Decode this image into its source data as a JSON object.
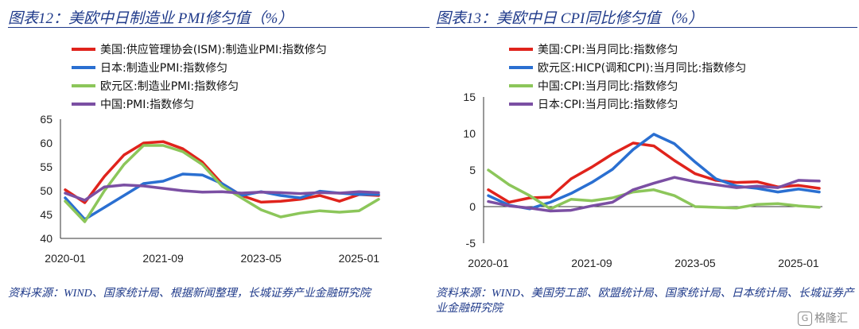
{
  "left": {
    "title": "图表12：美欧中日制造业 PMI修匀值（%）",
    "source": "资料来源：WIND、国家统计局、根据新闻整理，长城证券产业金融研究院",
    "chart_data": {
      "type": "line",
      "x": [
        "2020-01",
        "2020-05",
        "2020-09",
        "2021-01",
        "2021-05",
        "2021-09",
        "2022-01",
        "2022-05",
        "2022-09",
        "2023-01",
        "2023-05",
        "2023-09",
        "2024-01",
        "2024-05",
        "2024-09",
        "2025-01",
        "2025-05"
      ],
      "xticks": [
        "2020-01",
        "2021-09",
        "2023-05",
        "2025-01"
      ],
      "ylim": [
        40,
        65
      ],
      "yticks": [
        40,
        45,
        50,
        55,
        60,
        65
      ],
      "series": [
        {
          "name": "美国:供应管理协会(ISM):制造业PMI:指数修匀",
          "color": "#e0231c",
          "values": [
            50.2,
            47.5,
            53.0,
            57.5,
            60.0,
            60.3,
            58.8,
            56.0,
            51.5,
            49.0,
            47.6,
            47.8,
            48.2,
            49.0,
            47.8,
            49.2,
            49.0
          ]
        },
        {
          "name": "日本:制造业PMI:指数修匀",
          "color": "#2a6fd1",
          "values": [
            48.5,
            44.0,
            46.5,
            49.0,
            51.5,
            52.0,
            53.5,
            53.3,
            51.5,
            49.0,
            49.8,
            49.0,
            48.5,
            49.9,
            49.5,
            49.2,
            49.2
          ]
        },
        {
          "name": "欧元区:制造业PMI:指数修匀",
          "color": "#8cc65a",
          "values": [
            47.8,
            43.5,
            50.0,
            55.5,
            59.5,
            59.5,
            58.2,
            55.5,
            51.0,
            48.5,
            46.0,
            44.5,
            45.3,
            45.8,
            45.5,
            45.8,
            48.2
          ]
        },
        {
          "name": "中国:PMI:指数修匀",
          "color": "#7b4fa3",
          "values": [
            49.5,
            48.0,
            50.8,
            51.2,
            51.0,
            50.5,
            50.0,
            49.7,
            49.8,
            49.5,
            49.7,
            49.6,
            49.4,
            49.6,
            49.5,
            49.8,
            49.6
          ]
        }
      ]
    }
  },
  "right": {
    "title": "图表13：美欧中日 CPI同比修匀值（%）",
    "source": "资料来源：WIND、美国劳工部、欧盟统计局、国家统计局、日本统计局、长城证券产业金融研究院",
    "chart_data": {
      "type": "line",
      "x": [
        "2020-01",
        "2020-05",
        "2020-09",
        "2021-01",
        "2021-05",
        "2021-09",
        "2022-01",
        "2022-05",
        "2022-09",
        "2023-01",
        "2023-05",
        "2023-09",
        "2024-01",
        "2024-05",
        "2024-09",
        "2025-01",
        "2025-05"
      ],
      "xticks": [
        "2020-01",
        "2021-09",
        "2023-05",
        "2025-01"
      ],
      "ylim": [
        -5,
        15
      ],
      "yticks": [
        -5,
        0,
        5,
        10,
        15
      ],
      "series": [
        {
          "name": "美国:CPI:当月同比:指数修匀",
          "color": "#e0231c",
          "values": [
            2.3,
            0.6,
            1.2,
            1.3,
            3.8,
            5.4,
            7.2,
            8.7,
            8.3,
            6.3,
            4.5,
            3.6,
            3.3,
            3.4,
            2.7,
            2.9,
            2.5
          ]
        },
        {
          "name": "欧元区:HICP(调和CPI):当月同比:指数修匀",
          "color": "#2a6fd1",
          "values": [
            1.5,
            0.2,
            -0.3,
            0.6,
            1.8,
            3.3,
            5.1,
            7.8,
            9.9,
            8.6,
            6.1,
            3.8,
            2.8,
            2.5,
            2.0,
            2.4,
            2.0
          ]
        },
        {
          "name": "中国:CPI:当月同比:指数修匀",
          "color": "#8cc65a",
          "values": [
            5.0,
            3.0,
            1.5,
            -0.3,
            1.0,
            0.8,
            1.2,
            2.0,
            2.3,
            1.5,
            0.0,
            -0.1,
            -0.2,
            0.3,
            0.4,
            0.1,
            -0.1
          ]
        },
        {
          "name": "日本:CPI:当月同比:指数修匀",
          "color": "#7b4fa3",
          "values": [
            0.7,
            0.1,
            -0.2,
            -0.6,
            -0.5,
            0.1,
            0.6,
            2.3,
            3.2,
            4.0,
            3.4,
            3.0,
            2.6,
            2.8,
            2.6,
            3.6,
            3.5
          ]
        }
      ]
    }
  },
  "watermark": {
    "text": "格隆汇",
    "icon": "G"
  }
}
